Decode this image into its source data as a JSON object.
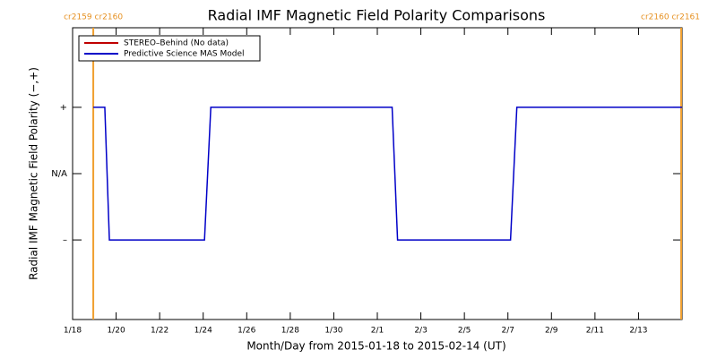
{
  "chart_data": {
    "type": "line",
    "title": "Radial IMF Magnetic Field Polarity Comparisons",
    "x_label": "Month/Day from 2015-01-18 to 2015-02-14 (UT)",
    "y_label": "Radial IMF Magnetic Field Polarity (−,+)",
    "xlim": [
      0,
      28
    ],
    "ylim": [
      -2.2,
      2.2
    ],
    "xticks": [
      {
        "value": 0,
        "label": "1/18"
      },
      {
        "value": 2,
        "label": "1/20"
      },
      {
        "value": 4,
        "label": "1/22"
      },
      {
        "value": 6,
        "label": "1/24"
      },
      {
        "value": 8,
        "label": "1/26"
      },
      {
        "value": 10,
        "label": "1/28"
      },
      {
        "value": 12,
        "label": "1/30"
      },
      {
        "value": 14,
        "label": "2/1"
      },
      {
        "value": 16,
        "label": "2/3"
      },
      {
        "value": 18,
        "label": "2/5"
      },
      {
        "value": 20,
        "label": "2/7"
      },
      {
        "value": 22,
        "label": "2/9"
      },
      {
        "value": 24,
        "label": "2/11"
      },
      {
        "value": 26,
        "label": "2/13"
      }
    ],
    "yticks": [
      {
        "value": 1,
        "label": "+"
      },
      {
        "value": 0,
        "label": "N/A"
      },
      {
        "value": -1,
        "label": "–"
      }
    ],
    "x": [
      0.95,
      1.48,
      1.69,
      6.06,
      6.35,
      14.68,
      14.93,
      20.12,
      20.41,
      28
    ],
    "series": [
      {
        "name": "STEREO–Behind (No data)",
        "color": "#c00000",
        "values": [
          null,
          null,
          null,
          null,
          null,
          null,
          null,
          null,
          null,
          null
        ]
      },
      {
        "name": "Predictive Science MAS Model",
        "color": "#0000c8",
        "values": [
          1,
          1,
          -1,
          -1,
          1,
          1,
          -1,
          -1,
          1,
          1
        ]
      }
    ],
    "rotations": [
      {
        "label": "cr2159 cr2160",
        "x": 0.95
      },
      {
        "label": "cr2160 cr2161",
        "x": 27.96
      }
    ],
    "rotation_color": "#f0a030",
    "legend": "top-left"
  }
}
